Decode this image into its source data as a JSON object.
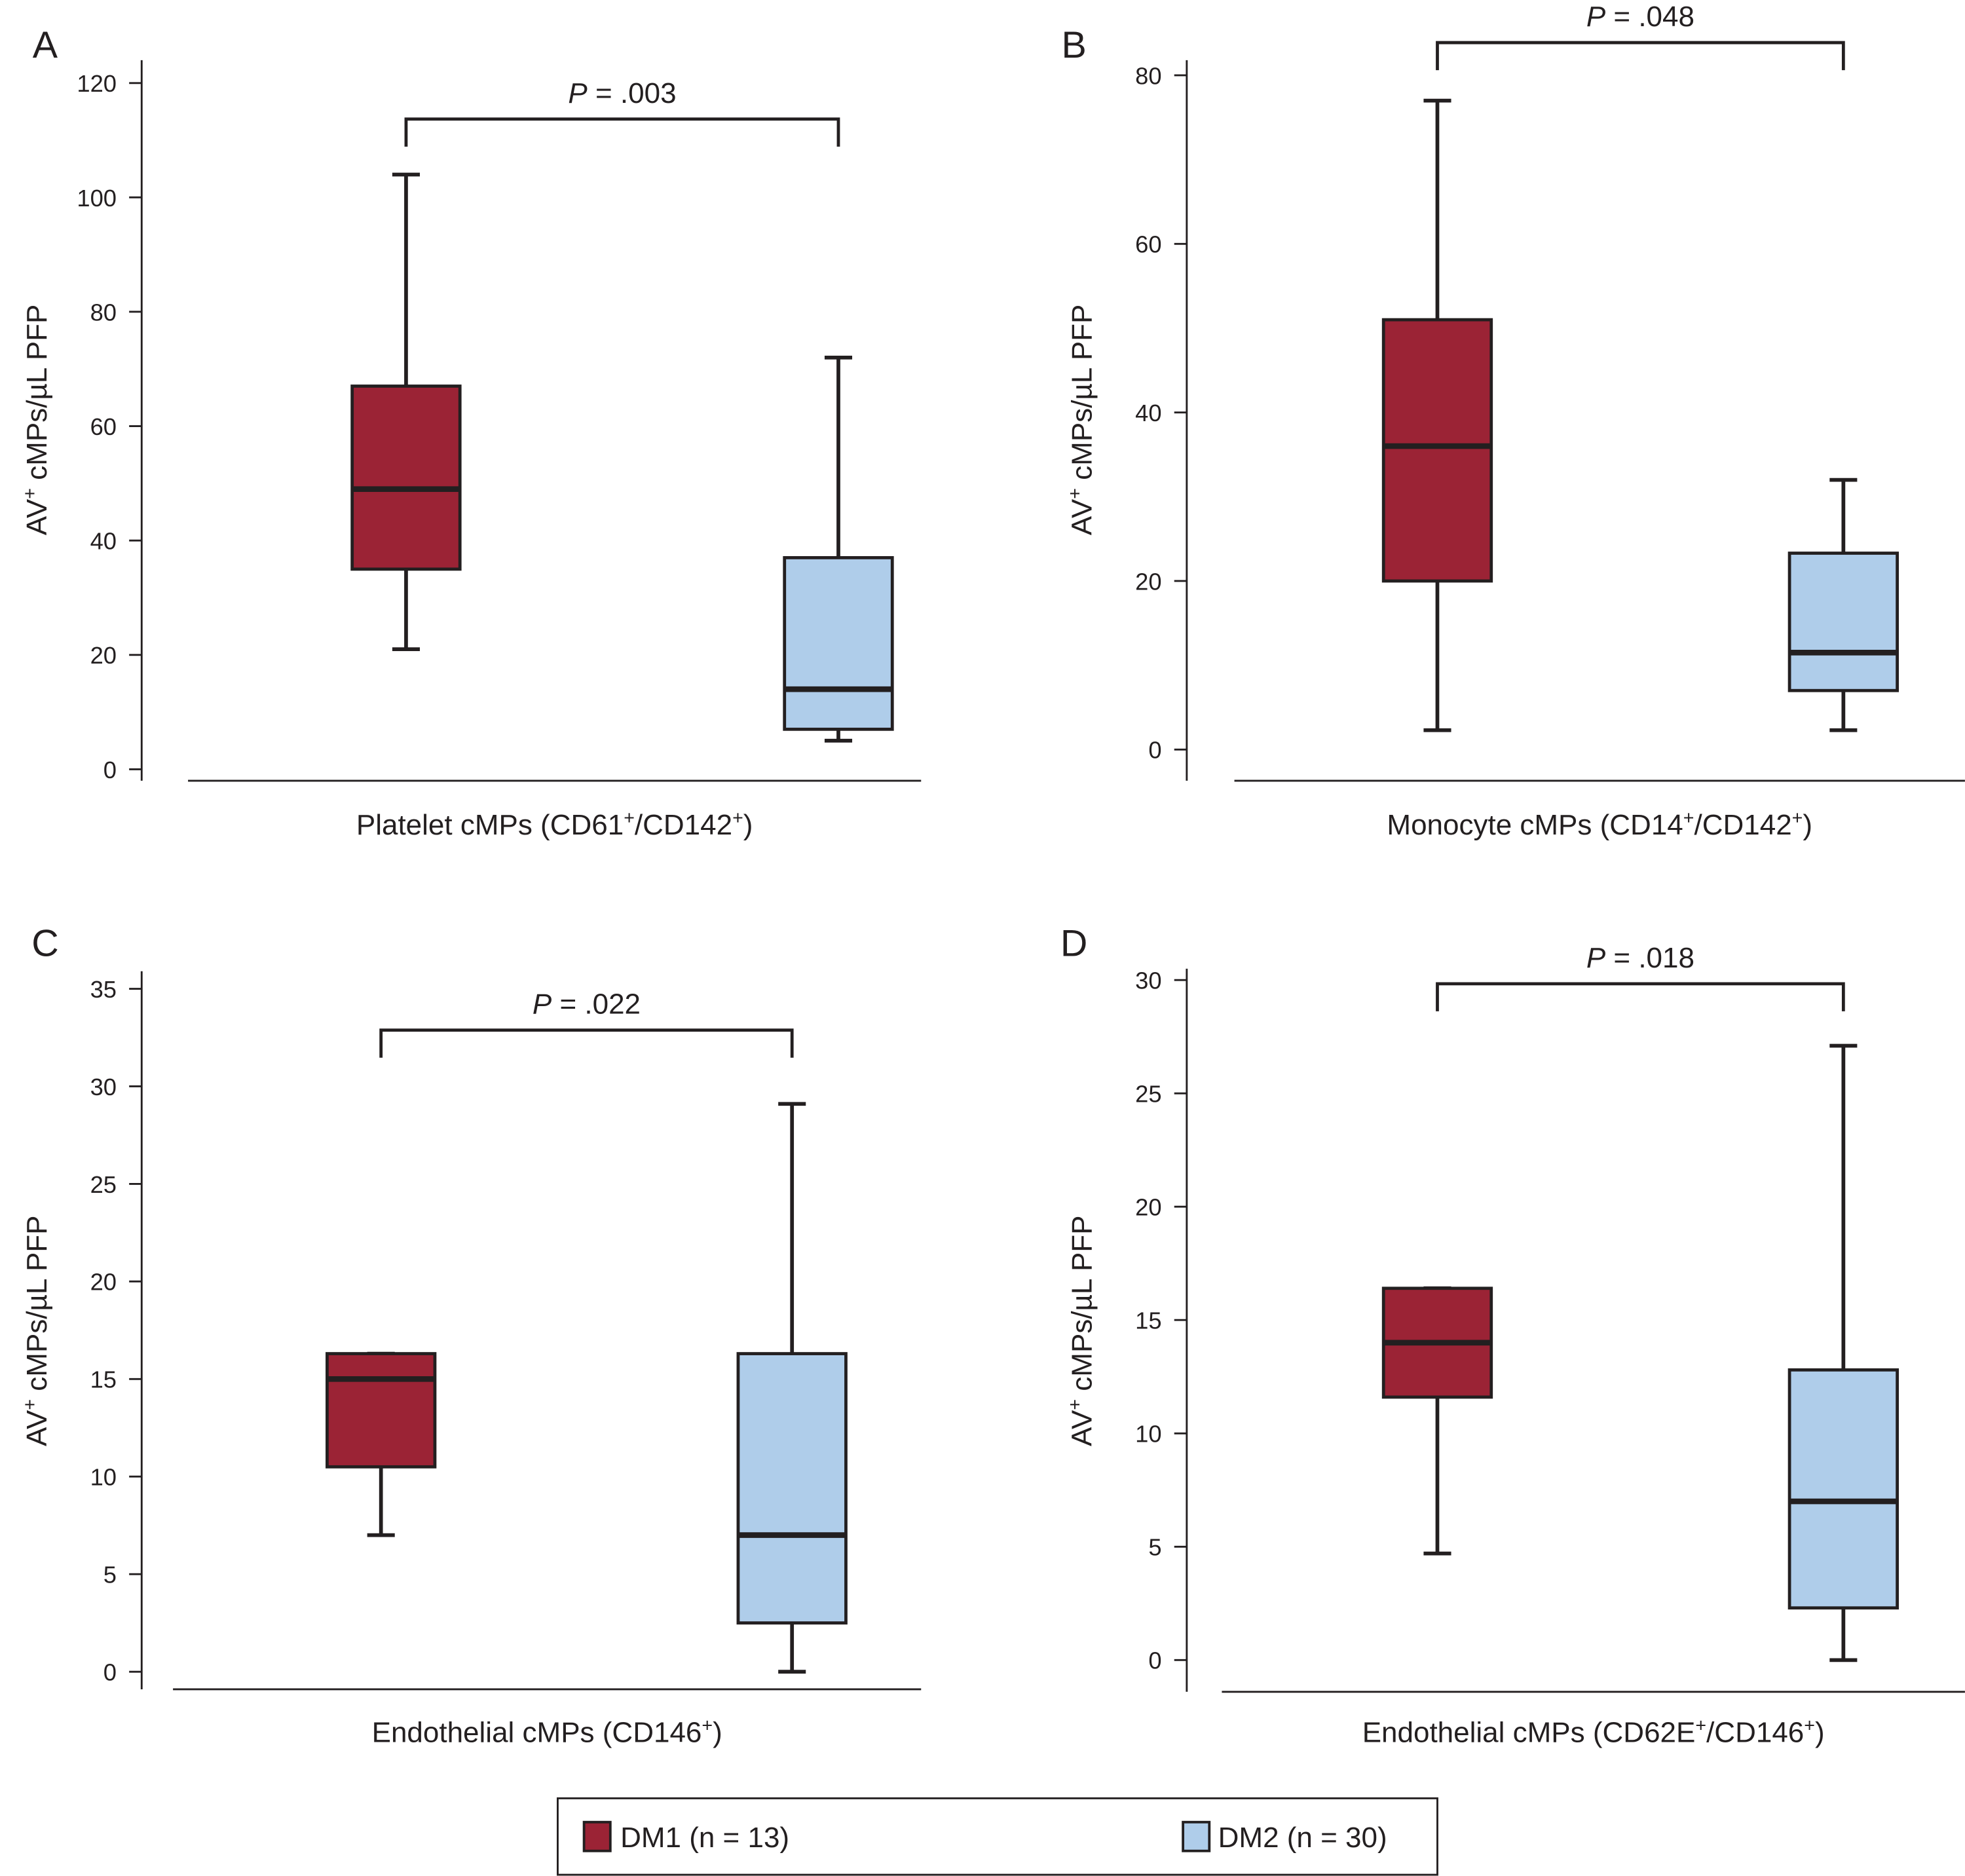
{
  "chart_data": [
    {
      "type": "box",
      "panel": "A",
      "annotation": [
        "P",
        " = .003"
      ],
      "ylabel": [
        "AV",
        "+",
        " cMPs/µL PFP"
      ],
      "xlabel": [
        "Platelet cMPs (CD61",
        "+",
        "/CD142",
        "+",
        ")"
      ],
      "ylim": [
        -2,
        124
      ],
      "yticks": [
        0,
        20,
        40,
        60,
        80,
        100,
        120
      ],
      "series": [
        {
          "values": [
            21,
            35,
            49,
            67,
            104
          ]
        },
        {
          "values": [
            5,
            7,
            14,
            37,
            72
          ]
        }
      ]
    },
    {
      "type": "box",
      "panel": "B",
      "annotation": [
        "P",
        " = .048"
      ],
      "ylabel": [
        "AV",
        "+",
        " cMPs/µL PFP"
      ],
      "xlabel": [
        "Monocyte cMPs (CD14",
        "+",
        "/CD142",
        "+",
        ")"
      ],
      "ylim": [
        -3.7,
        81.8
      ],
      "yticks": [
        0,
        20,
        40,
        60,
        80
      ],
      "series": [
        {
          "values": [
            2.3,
            20,
            36,
            51,
            77
          ]
        },
        {
          "values": [
            2.3,
            7,
            11.5,
            23.3,
            32
          ]
        }
      ]
    },
    {
      "type": "box",
      "panel": "C",
      "annotation": [
        "P",
        " = .022"
      ],
      "ylabel": [
        "AV",
        "+",
        " cMPs/µL PFP"
      ],
      "xlabel": [
        "Endothelial cMPs (CD146",
        "+",
        ")"
      ],
      "ylim": [
        -0.9,
        35.9
      ],
      "yticks": [
        0,
        5,
        10,
        15,
        20,
        25,
        30,
        35
      ],
      "series": [
        {
          "values": [
            7,
            10.5,
            15,
            16.3,
            16.3
          ]
        },
        {
          "values": [
            0,
            2.5,
            7,
            16.3,
            29.1
          ]
        }
      ]
    },
    {
      "type": "box",
      "panel": "D",
      "annotation": [
        "P",
        " = .018"
      ],
      "ylabel": [
        "AV",
        "+",
        " cMPs/µL PFP"
      ],
      "xlabel": [
        "Endothelial cMPs (CD62E",
        "+",
        "/CD146",
        "+",
        ")"
      ],
      "ylim": [
        -1.4,
        30.5
      ],
      "yticks": [
        0,
        5,
        10,
        15,
        20,
        25,
        30
      ],
      "series": [
        {
          "values": [
            4.7,
            11.6,
            14,
            16.4,
            16.4
          ]
        },
        {
          "values": [
            0,
            2.3,
            7,
            12.8,
            27.1
          ]
        }
      ]
    }
  ],
  "legend": {
    "items": [
      {
        "name": "DM1 (n = 13)",
        "color": "#9b2335"
      },
      {
        "name": "DM2 (n = 30)",
        "color": "#afcdea"
      }
    ]
  }
}
